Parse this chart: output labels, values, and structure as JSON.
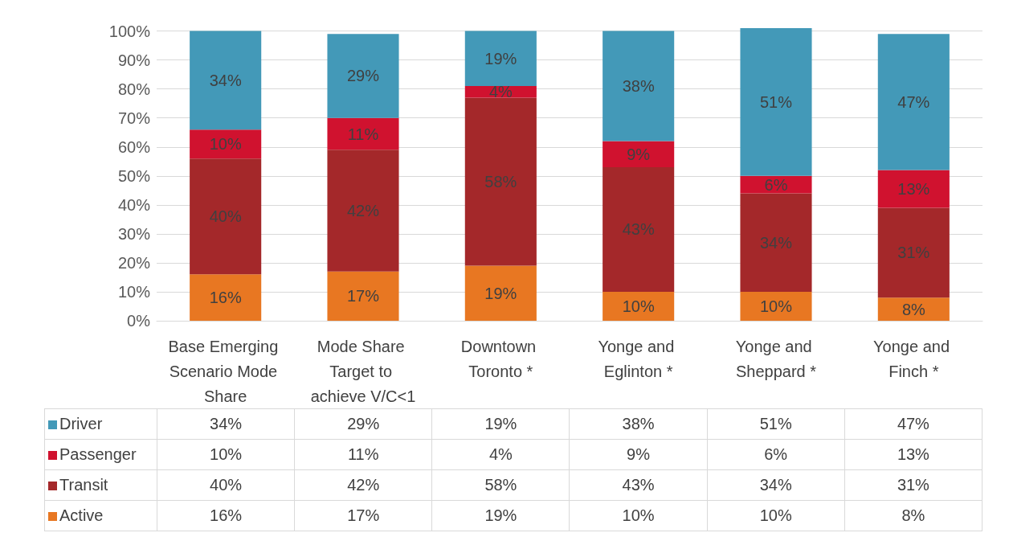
{
  "chart_data": {
    "type": "bar",
    "stacked": true,
    "grid": "y",
    "legend": "bottom",
    "categories": [
      "Base Emerging Scenario Mode Share",
      "Mode Share Target to achieve V/C<1",
      "Downtown Toronto *",
      "Yonge and Eglinton *",
      "Yonge and Sheppard *",
      "Yonge and Finch *"
    ],
    "ylim": [
      0,
      101
    ],
    "yticks": [
      {
        "value": 0,
        "label": "0%"
      },
      {
        "value": 10,
        "label": "10%"
      },
      {
        "value": 20,
        "label": "20%"
      },
      {
        "value": 30,
        "label": "30%"
      },
      {
        "value": 40,
        "label": "40%"
      },
      {
        "value": 50,
        "label": "50%"
      },
      {
        "value": 60,
        "label": "60%"
      },
      {
        "value": 70,
        "label": "70%"
      },
      {
        "value": 80,
        "label": "80%"
      },
      {
        "value": 90,
        "label": "90%"
      },
      {
        "value": 100,
        "label": "100%"
      }
    ],
    "series": [
      {
        "name": "Active",
        "color": "#e87722",
        "values": [
          16,
          17,
          19,
          10,
          10,
          8
        ],
        "value_labels": [
          "16%",
          "17%",
          "19%",
          "10%",
          "10%",
          "8%"
        ]
      },
      {
        "name": "Transit",
        "color": "#a4282a",
        "values": [
          40,
          42,
          58,
          43,
          34,
          31
        ],
        "value_labels": [
          "40%",
          "42%",
          "58%",
          "43%",
          "34%",
          "31%"
        ]
      },
      {
        "name": "Passenger",
        "color": "#d0122f",
        "values": [
          10,
          11,
          4,
          9,
          6,
          13
        ],
        "value_labels": [
          "10%",
          "11%",
          "4%",
          "9%",
          "6%",
          "13%"
        ]
      },
      {
        "name": "Driver",
        "color": "#4399b8",
        "values": [
          34,
          29,
          19,
          38,
          51,
          47
        ],
        "value_labels": [
          "34%",
          "29%",
          "19%",
          "38%",
          "51%",
          "47%"
        ]
      }
    ]
  }
}
